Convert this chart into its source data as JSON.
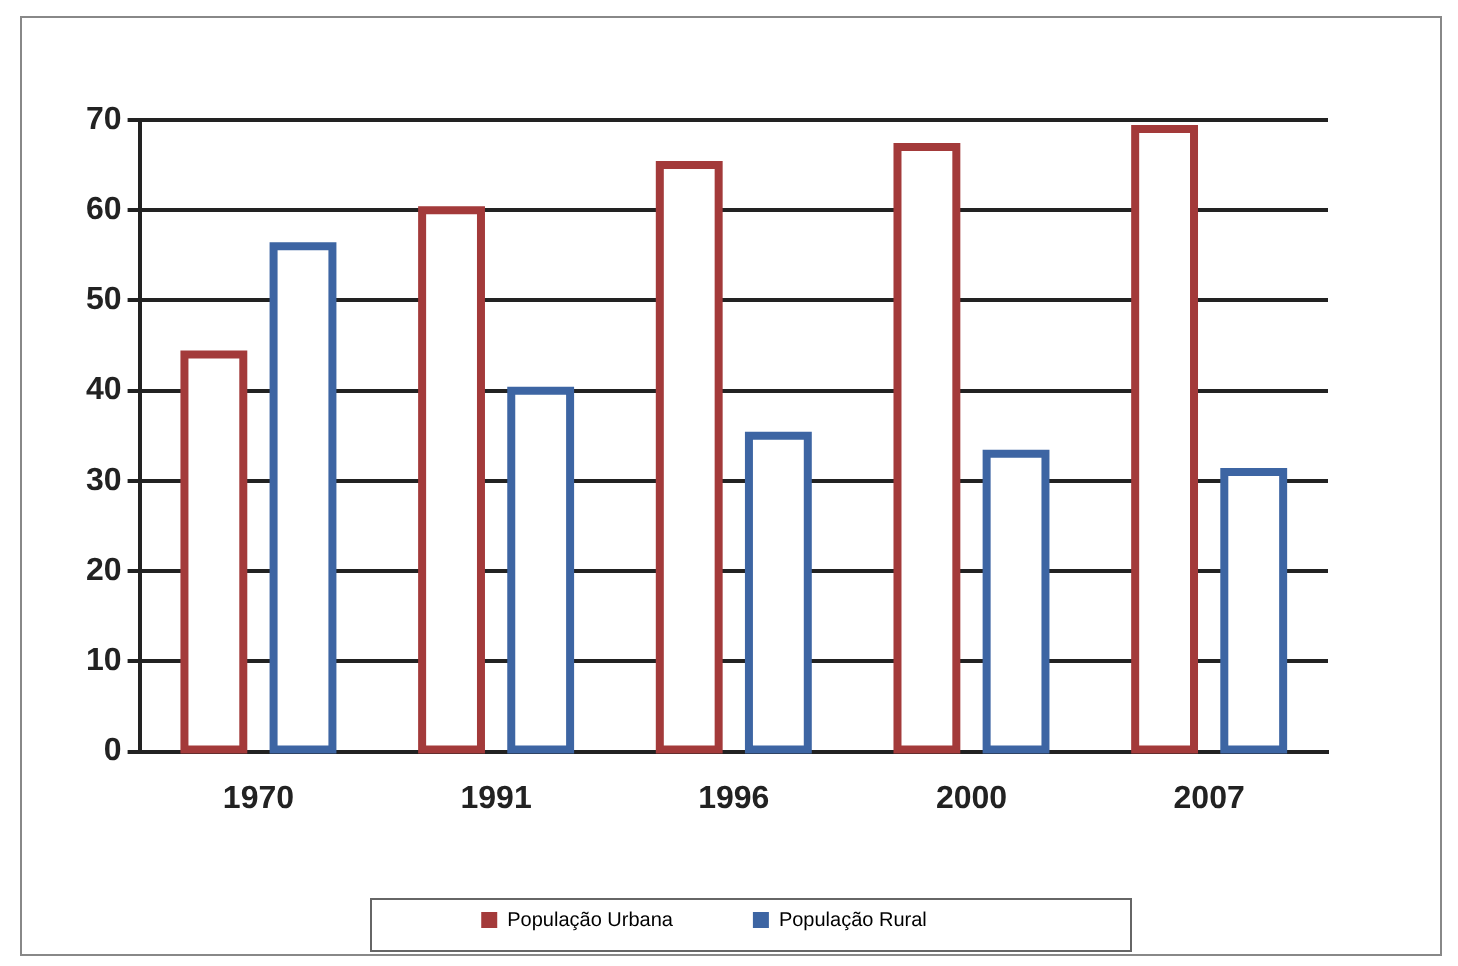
{
  "chart_data": {
    "type": "bar",
    "categories": [
      "1970",
      "1991",
      "1996",
      "2000",
      "2007"
    ],
    "series": [
      {
        "name": "População Urbana",
        "color": "#a33a3a",
        "values": [
          44,
          60,
          65,
          67,
          69
        ]
      },
      {
        "name": "População Rural",
        "color": "#3d65a3",
        "values": [
          56,
          40,
          35,
          33,
          31
        ]
      }
    ],
    "ylim": [
      0,
      70
    ],
    "yticks": [
      0,
      10,
      20,
      30,
      40,
      50,
      60,
      70
    ],
    "grid": "y",
    "legend": "bottom"
  }
}
